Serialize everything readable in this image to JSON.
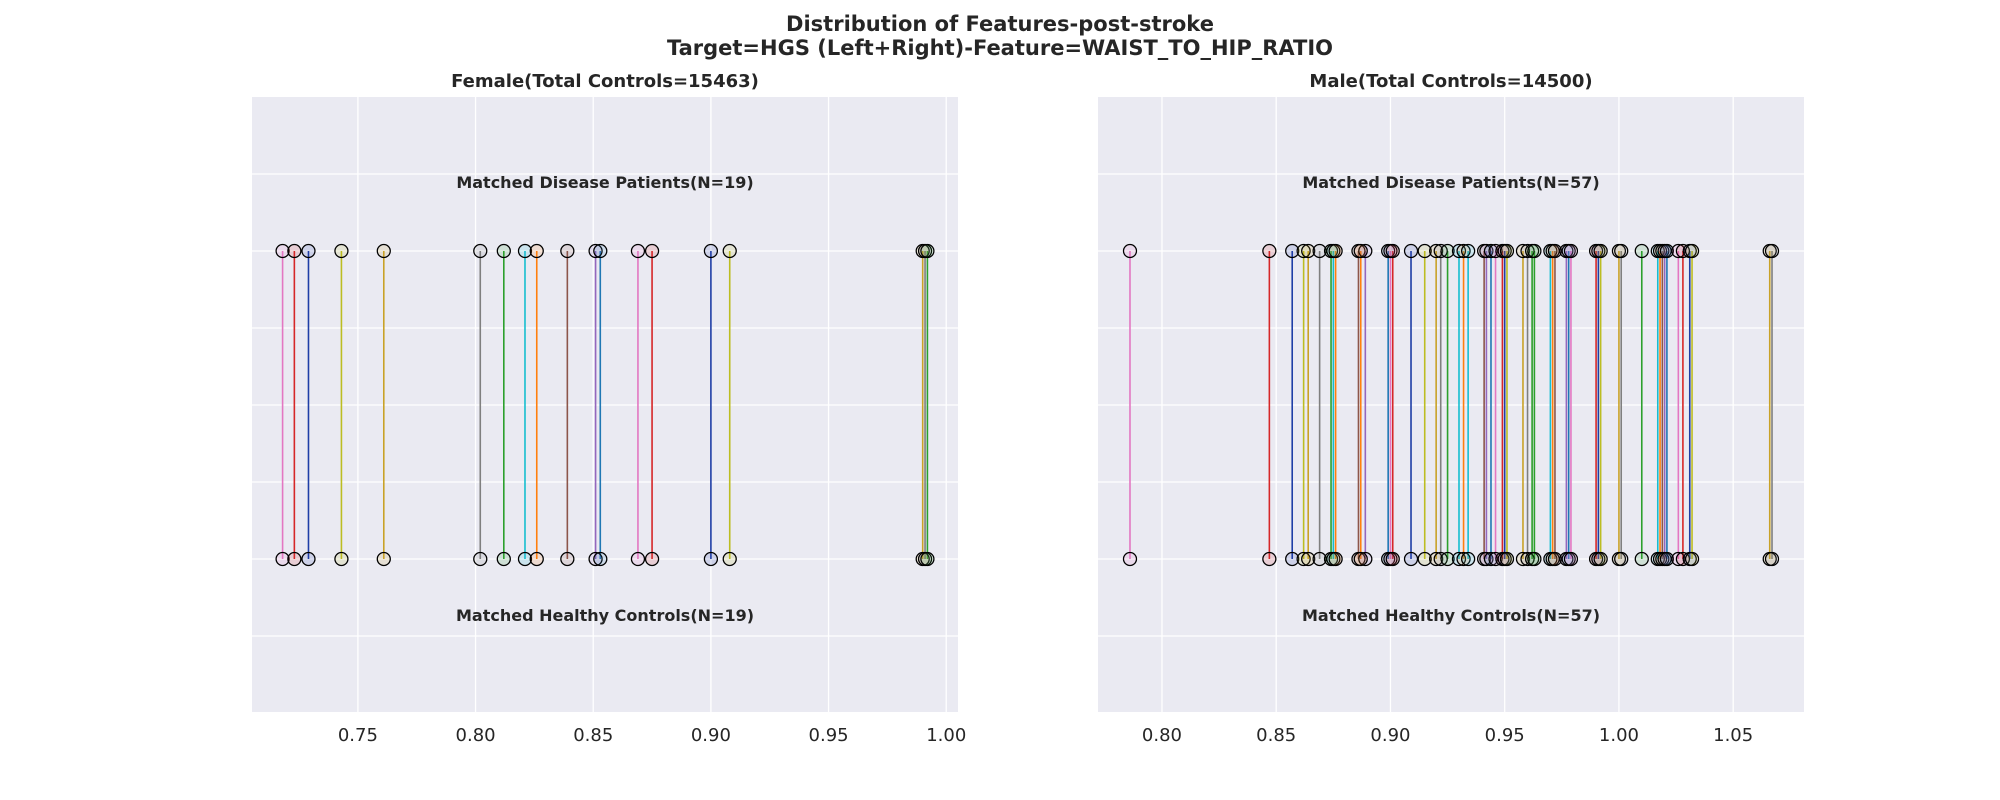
{
  "figure": {
    "title_line1": "Distribution of Features-post-stroke",
    "title_line2": "Target=HGS (Left+Right)-Feature=WAIST_TO_HIP_RATIO"
  },
  "colors": {
    "panel_bg": "#eaeaf2",
    "grid": "#ffffff",
    "marker_edge": "#000000",
    "palette": [
      "#e377c2",
      "#d62728",
      "#1f3ea6",
      "#bcbd22",
      "#c9a227",
      "#7f7f7f",
      "#2ca02c",
      "#17becf",
      "#ff7f0e",
      "#8c564b",
      "#9467bd",
      "#1f77b4"
    ]
  },
  "chart_data": [
    {
      "type": "scatter",
      "title": "Female(Total Controls=15463)",
      "xlim": [
        0.705,
        1.005
      ],
      "xticks": [
        0.75,
        0.8,
        0.85,
        0.9,
        0.95,
        1.0
      ],
      "xtick_labels": [
        "0.75",
        "0.80",
        "0.85",
        "0.90",
        "0.95",
        "1.00"
      ],
      "grid": true,
      "groups": {
        "disease_label": "Matched Disease Patients(N=19)",
        "control_label": "Matched Healthy Controls(N=19)"
      },
      "values": [
        0.718,
        0.723,
        0.729,
        0.743,
        0.761,
        0.802,
        0.812,
        0.821,
        0.826,
        0.839,
        0.851,
        0.853,
        0.869,
        0.875,
        0.9,
        0.908,
        0.99,
        0.991,
        0.992
      ]
    },
    {
      "type": "scatter",
      "title": "Male(Total Controls=14500)",
      "xlim": [
        0.772,
        1.081
      ],
      "xticks": [
        0.8,
        0.85,
        0.9,
        0.95,
        1.0,
        1.05
      ],
      "xtick_labels": [
        "0.80",
        "0.85",
        "0.90",
        "0.95",
        "1.00",
        "1.05"
      ],
      "grid": true,
      "groups": {
        "disease_label": "Matched Disease Patients(N=57)",
        "control_label": "Matched Healthy Controls(N=57)"
      },
      "values": [
        0.786,
        0.847,
        0.857,
        0.862,
        0.864,
        0.869,
        0.874,
        0.875,
        0.876,
        0.886,
        0.889,
        0.899,
        0.9,
        0.901,
        0.909,
        0.915,
        0.92,
        0.922,
        0.925,
        0.93,
        0.932,
        0.941,
        0.942,
        0.944,
        0.946,
        0.949,
        0.95,
        0.951,
        0.958,
        0.96,
        0.962,
        0.97,
        0.971,
        0.972,
        0.977,
        0.978,
        0.979,
        0.99,
        0.991,
        0.992,
        1.0,
        1.001,
        1.01,
        1.017,
        1.018,
        1.019,
        1.02,
        1.021,
        1.026,
        1.028,
        1.031,
        1.032,
        1.066,
        1.067,
        0.963,
        0.934,
        0.887
      ]
    }
  ]
}
